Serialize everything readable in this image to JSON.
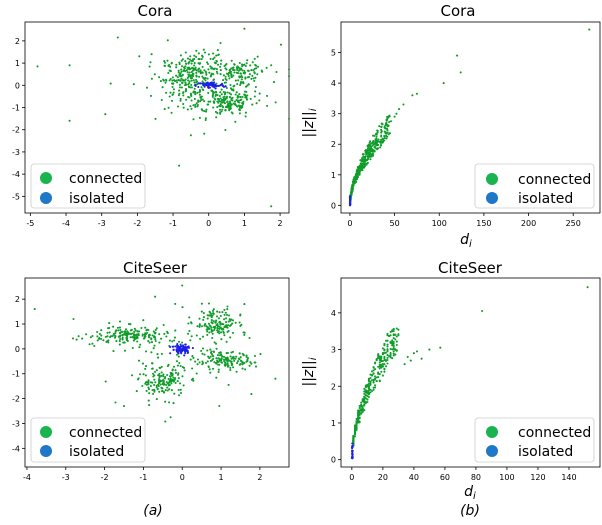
{
  "colors": {
    "connected": "#0f9d2a",
    "isolated": "#1f1fe6",
    "legend_connected": "#19b44f",
    "legend_isolated": "#1f77c8"
  },
  "captions": [
    "(a)",
    "(b)"
  ],
  "chart_data": [
    {
      "type": "scatter",
      "title": "Cora",
      "xlabel": "",
      "ylabel": "",
      "xlim": [
        -5.15,
        2.25
      ],
      "ylim": [
        -5.75,
        2.85
      ],
      "xticks": [
        -5,
        -4,
        -3,
        -2,
        -1,
        0,
        1,
        2
      ],
      "yticks": [
        -5,
        -4,
        -3,
        -2,
        -1,
        0,
        1,
        2
      ],
      "grid": false,
      "legend_position": "bottom-left",
      "series": [
        {
          "name": "connected",
          "color": "#0f9d2a",
          "clusters": [
            {
              "shape": "ring",
              "cx": 0.0,
              "cy": 0.1,
              "r": 1.0,
              "width": 0.35,
              "count": 260
            },
            {
              "shape": "blob",
              "cx": -0.5,
              "cy": 0.4,
              "sx": 0.35,
              "sy": 0.4,
              "count": 140
            },
            {
              "shape": "blob",
              "cx": 0.6,
              "cy": -0.85,
              "sx": 0.3,
              "sy": 0.25,
              "count": 110
            },
            {
              "shape": "blob",
              "cx": 0.9,
              "cy": 0.65,
              "sx": 0.3,
              "sy": 0.2,
              "count": 70
            },
            {
              "shape": "blob",
              "cx": -0.2,
              "cy": 0.0,
              "sx": 1.1,
              "sy": 0.9,
              "count": 60
            }
          ],
          "outliers": [
            [
              -4.8,
              0.85
            ],
            [
              -3.9,
              0.9
            ],
            [
              -3.9,
              -1.6
            ],
            [
              -2.55,
              2.15
            ],
            [
              -2.1,
              0.05
            ],
            [
              -2.9,
              -1.3
            ],
            [
              1.0,
              2.55
            ],
            [
              1.75,
              -5.45
            ],
            [
              1.75,
              0.9
            ],
            [
              1.9,
              0.6
            ],
            [
              -1.6,
              1.4
            ],
            [
              -0.5,
              -2.25
            ]
          ]
        },
        {
          "name": "isolated",
          "color": "#1f1fe6",
          "clusters": [
            {
              "shape": "blob",
              "cx": 0.05,
              "cy": 0.0,
              "sx": 0.2,
              "sy": 0.08,
              "count": 70
            }
          ],
          "outliers": []
        }
      ]
    },
    {
      "type": "scatter",
      "title": "Cora",
      "xlabel": "d",
      "xlabel_sub": "i",
      "ylabel": "||z||",
      "ylabel_sub": "i",
      "xlim": [
        -10,
        280
      ],
      "ylim": [
        -0.25,
        6.0
      ],
      "xticks": [
        0,
        50,
        100,
        150,
        200,
        250
      ],
      "yticks": [
        0,
        1,
        2,
        3,
        4,
        5
      ],
      "grid": false,
      "legend_position": "bottom-right",
      "series": [
        {
          "name": "connected",
          "color": "#0f9d2a",
          "curve": {
            "a": 0.32,
            "b": 0.555
          },
          "x_range": [
            0.3,
            45
          ],
          "count": 420,
          "extra_points": [
            [
              50,
              2.9
            ],
            [
              55,
              3.15
            ],
            [
              60,
              3.3
            ],
            [
              70,
              3.6
            ],
            [
              75,
              3.65
            ],
            [
              105,
              4.0
            ],
            [
              120,
              4.9
            ],
            [
              124,
              4.35
            ],
            [
              268,
              5.75
            ],
            [
              46,
              2.75
            ],
            [
              52,
              3.0
            ]
          ]
        },
        {
          "name": "isolated",
          "color": "#1f1fe6",
          "x_range": [
            0,
            0.5
          ],
          "y_range": [
            0.0,
            0.3
          ],
          "count": 25
        }
      ]
    },
    {
      "type": "scatter",
      "title": "CiteSeer",
      "xlabel": "",
      "ylabel": "",
      "xlim": [
        -4.05,
        2.75
      ],
      "ylim": [
        -4.75,
        2.85
      ],
      "xticks": [
        -4,
        -3,
        -2,
        -1,
        0,
        1,
        2
      ],
      "yticks": [
        -4,
        -3,
        -2,
        -1,
        0,
        1,
        2
      ],
      "grid": false,
      "legend_position": "bottom-left",
      "series": [
        {
          "name": "connected",
          "color": "#0f9d2a",
          "clusters": [
            {
              "shape": "blob",
              "cx": -1.4,
              "cy": 0.55,
              "sx": 0.45,
              "sy": 0.17,
              "count": 170
            },
            {
              "shape": "blob",
              "cx": 0.85,
              "cy": 1.0,
              "sx": 0.28,
              "sy": 0.3,
              "count": 140
            },
            {
              "shape": "blob",
              "cx": -0.5,
              "cy": -1.3,
              "sx": 0.3,
              "sy": 0.32,
              "count": 150
            },
            {
              "shape": "blob",
              "cx": 1.1,
              "cy": -0.5,
              "sx": 0.38,
              "sy": 0.18,
              "count": 140
            },
            {
              "shape": "blob",
              "cx": -0.1,
              "cy": -0.1,
              "sx": 1.0,
              "sy": 0.85,
              "count": 80
            }
          ],
          "outliers": [
            [
              -3.8,
              1.6
            ],
            [
              -2.8,
              1.2
            ],
            [
              -0.7,
              2.1
            ],
            [
              0.0,
              2.55
            ],
            [
              1.6,
              1.8
            ],
            [
              2.4,
              -1.2
            ],
            [
              -0.3,
              -2.75
            ],
            [
              -1.5,
              -2.3
            ]
          ]
        },
        {
          "name": "isolated",
          "color": "#1f1fe6",
          "clusters": [
            {
              "shape": "blob",
              "cx": 0.0,
              "cy": 0.0,
              "sx": 0.13,
              "sy": 0.1,
              "count": 90
            }
          ],
          "outliers": []
        }
      ]
    },
    {
      "type": "scatter",
      "title": "CiteSeer",
      "xlabel": "d",
      "xlabel_sub": "i",
      "ylabel": "||z||",
      "ylabel_sub": "i",
      "xlim": [
        -7,
        160
      ],
      "ylim": [
        -0.2,
        4.95
      ],
      "xticks": [
        0,
        20,
        40,
        60,
        80,
        100,
        120,
        140
      ],
      "yticks": [
        0,
        1,
        2,
        3,
        4
      ],
      "grid": false,
      "legend_position": "bottom-right",
      "series": [
        {
          "name": "connected",
          "color": "#0f9d2a",
          "curve": {
            "a": 0.52,
            "b": 0.55
          },
          "x_range": [
            0.3,
            30
          ],
          "count": 380,
          "columns": true,
          "extra_points": [
            [
              34,
              2.6
            ],
            [
              36,
              2.8
            ],
            [
              38,
              2.7
            ],
            [
              40,
              2.9
            ],
            [
              42,
              2.95
            ],
            [
              45,
              2.75
            ],
            [
              50,
              3.0
            ],
            [
              57,
              3.05
            ],
            [
              84,
              4.05
            ],
            [
              152,
              4.7
            ]
          ]
        },
        {
          "name": "isolated",
          "color": "#1f1fe6",
          "x_range": [
            0,
            0.6
          ],
          "y_range": [
            0.0,
            0.45
          ],
          "count": 25
        }
      ]
    }
  ]
}
